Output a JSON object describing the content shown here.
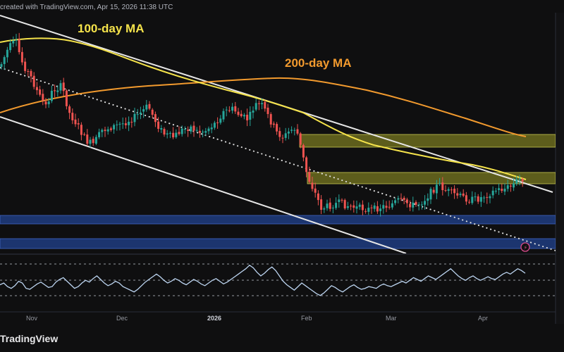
{
  "header": {
    "text": "created with TradingView.com, Apr 15, 2026 11:38 UTC"
  },
  "watermark": {
    "text": "TradingView"
  },
  "colors": {
    "background": "#0f0f10",
    "candle_up": "#26a69a",
    "candle_down": "#ef5350",
    "ma100": "#f5e34b",
    "ma200": "#f29a2e",
    "channel": "#e6e6e6",
    "zone_yellow": "#6b6b1e",
    "zone_blue": "#1e3a7a",
    "rsi_line": "#bcd4f0"
  },
  "chart_data": {
    "type": "candlestick",
    "title": "",
    "annotations": [
      "100-day MA",
      "200-day MA"
    ],
    "x_tick_labels": [
      "Nov",
      "Dec",
      "2026",
      "Feb",
      "Mar",
      "Apr"
    ],
    "series": [
      {
        "name": "100-day MA",
        "type": "line",
        "color": "#f5e34b"
      },
      {
        "name": "200-day MA",
        "type": "line",
        "color": "#f29a2e"
      }
    ],
    "indicator": {
      "type": "oscillator",
      "color": "#bcd4f0",
      "values": [
        48,
        50,
        46,
        44,
        47,
        52,
        50,
        44,
        43,
        46,
        49,
        51,
        48,
        45,
        46,
        51,
        54,
        56,
        52,
        48,
        44,
        46,
        50,
        53,
        51,
        55,
        58,
        54,
        50,
        47,
        49,
        52,
        50,
        46,
        44,
        42,
        40,
        43,
        47,
        51,
        54,
        57,
        60,
        57,
        53,
        50,
        52,
        55,
        53,
        50,
        48,
        51,
        54,
        52,
        49,
        47,
        50,
        53,
        55,
        52,
        49,
        51,
        54,
        57,
        60,
        63,
        66,
        70,
        67,
        62,
        58,
        61,
        65,
        68,
        64,
        58,
        52,
        48,
        45,
        42,
        46,
        50,
        47,
        44,
        41,
        38,
        36,
        39,
        43,
        47,
        45,
        42,
        40,
        43,
        46,
        48,
        45,
        43,
        44,
        46,
        45,
        44,
        47,
        49,
        47,
        46,
        48,
        50,
        52,
        50,
        53,
        56,
        54,
        52,
        55,
        58,
        56,
        54,
        57,
        60,
        63,
        66,
        62,
        58,
        55,
        53,
        56,
        58,
        55,
        53,
        55,
        57,
        55,
        54,
        57,
        60,
        62,
        60,
        63,
        66,
        64,
        61
      ]
    },
    "grid": true
  }
}
